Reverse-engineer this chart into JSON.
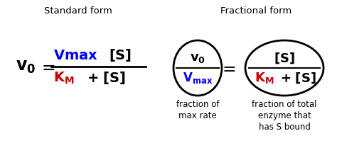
{
  "title_left": "Standard form",
  "title_right": "Fractional form",
  "bg_color": "#ffffff",
  "black": "#000000",
  "blue": "#0000ff",
  "red": "#cc0000",
  "label_fraction_of_max": "fraction of\nmax rate",
  "label_fraction_of_total": "fraction of total\nenzyme that\nhas S bound",
  "figsize": [
    4.74,
    2.09
  ],
  "dpi": 100
}
